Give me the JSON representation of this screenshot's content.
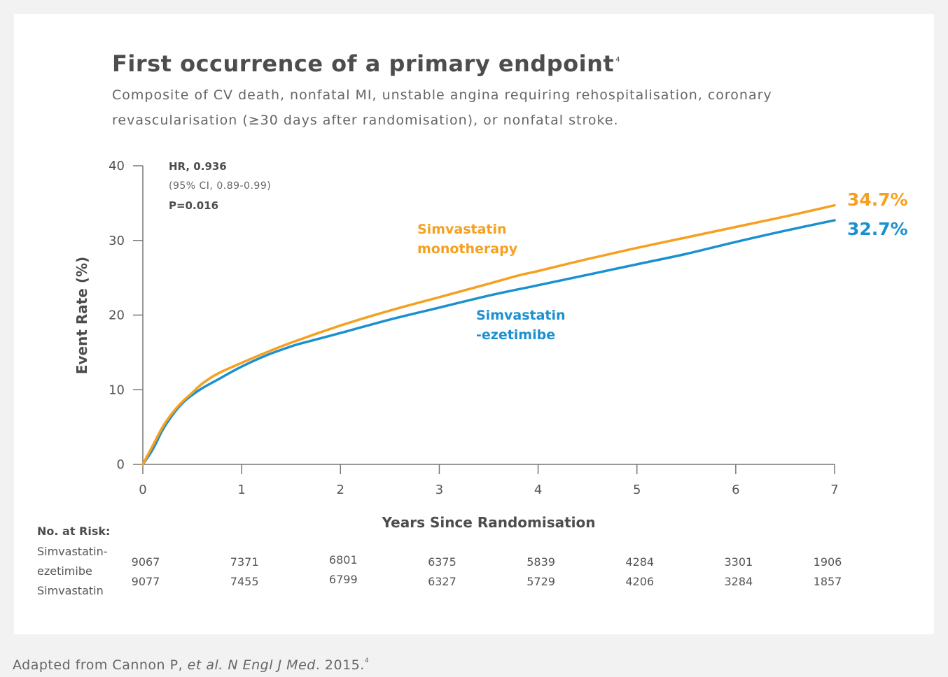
{
  "header": {
    "title": "First occurrence of a primary endpoint",
    "title_ref": "4",
    "subtitle": "Composite of CV death, nonfatal MI, unstable angina requiring rehospitalisation, coronary revascularisation (≥30 days after randomisation), or nonfatal stroke."
  },
  "stats": {
    "hr": "HR, 0.936",
    "ci": "(95% CI, 0.89-0.99)",
    "p": "P=0.016"
  },
  "chart_data": {
    "type": "line",
    "xlabel": "Years Since Randomisation",
    "ylabel": "Event Rate (%)",
    "xlim": [
      0,
      7
    ],
    "ylim": [
      0,
      40
    ],
    "x_ticks": [
      0,
      1,
      2,
      3,
      4,
      5,
      6,
      7
    ],
    "y_ticks": [
      0,
      10,
      20,
      30,
      40
    ],
    "grid": false,
    "series": [
      {
        "name": "Simvastatin monotherapy",
        "color": "#f5a020",
        "end_label": "34.7%",
        "x": [
          0,
          0.1,
          0.2,
          0.3,
          0.4,
          0.5,
          0.6,
          0.75,
          1.0,
          1.25,
          1.5,
          2.0,
          2.5,
          3.0,
          3.5,
          3.8,
          4.0,
          4.5,
          5.0,
          5.5,
          6.0,
          6.5,
          7.0
        ],
        "y": [
          0,
          2.5,
          5.0,
          6.9,
          8.4,
          9.6,
          10.8,
          12.1,
          13.6,
          15.0,
          16.3,
          18.6,
          20.6,
          22.4,
          24.2,
          25.3,
          25.9,
          27.5,
          29.0,
          30.4,
          31.8,
          33.2,
          34.7
        ]
      },
      {
        "name": "Simvastatin-ezetimibe",
        "color": "#1a90d0",
        "end_label": "32.7%",
        "x": [
          0,
          0.1,
          0.2,
          0.3,
          0.4,
          0.5,
          0.6,
          0.75,
          1.0,
          1.25,
          1.5,
          1.6,
          2.0,
          2.5,
          3.0,
          3.5,
          4.0,
          4.5,
          5.0,
          5.5,
          6.0,
          6.5,
          7.0
        ],
        "y": [
          0,
          2.0,
          4.6,
          6.6,
          8.2,
          9.3,
          10.2,
          11.3,
          13.1,
          14.6,
          15.8,
          16.2,
          17.6,
          19.4,
          21.0,
          22.6,
          24.0,
          25.4,
          26.8,
          28.2,
          29.8,
          31.3,
          32.7
        ]
      }
    ],
    "labels": {
      "mono_line1": "Simvastatin",
      "mono_line2": "monotherapy",
      "eze_line1": "Simvastatin",
      "eze_line2": "-ezetimibe"
    }
  },
  "risk_table": {
    "title": "No. at Risk:",
    "row1_name_line1": "Simvastatin-",
    "row1_name_line2": "ezetimibe",
    "row2_name": "Simvastatin",
    "row1": [
      "9067",
      "7371",
      "6801",
      "6375",
      "5839",
      "4284",
      "3301",
      "1906"
    ],
    "row2": [
      "9077",
      "7455",
      "6799",
      "6327",
      "5729",
      "4206",
      "3284",
      "1857"
    ]
  },
  "footnote": {
    "prefix": "Adapted from Cannon P, ",
    "italic": "et al. N Engl J Med",
    "suffix": ". 2015.",
    "ref": "4"
  }
}
